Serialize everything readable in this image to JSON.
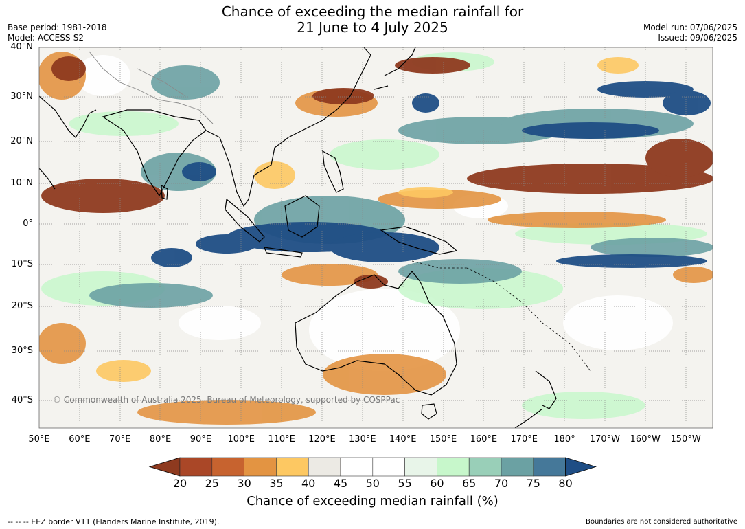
{
  "header": {
    "title_line1": "Chance of exceeding the median rainfall for",
    "title_line2": "21 June to 4 July 2025",
    "base_period": "Base period: 1981-2018",
    "model": "Model: ACCESS-S2",
    "model_run": "Model run: 07/06/2025",
    "issued": "Issued: 09/06/2025"
  },
  "map": {
    "lat_labels": [
      "40°N",
      "30°N",
      "20°N",
      "10°N",
      "0°",
      "10°S",
      "20°S",
      "30°S",
      "40°S"
    ],
    "lon_labels": [
      "50°E",
      "60°E",
      "70°E",
      "80°E",
      "90°E",
      "100°E",
      "110°E",
      "120°E",
      "130°E",
      "140°E",
      "150°E",
      "160°E",
      "170°E",
      "180°",
      "170°W",
      "160°W",
      "150°W"
    ],
    "credit": "© Commonwealth of Australia 2025, Bureau of Meteorology, supported by COSPPac"
  },
  "colorbar": {
    "title": "Chance of exceeding median rainfall (%)",
    "ticks": [
      "20",
      "25",
      "30",
      "35",
      "40",
      "45",
      "50",
      "55",
      "60",
      "65",
      "70",
      "75",
      "80"
    ],
    "colors": [
      "#8e3a1f",
      "#aa4727",
      "#c7632f",
      "#e39442",
      "#fdc862",
      "#eceae4",
      "#ffffff",
      "#ffffff",
      "#e8f5e9",
      "#c7f7cb",
      "#99cfb8",
      "#6ba1a3",
      "#457899",
      "#1f4e85"
    ]
  },
  "footer": {
    "legend": "--  --  -- EEZ border V11 (Flanders Marine Institute, 2019).",
    "disclaimer": "Boundaries are not considered authoritative"
  }
}
